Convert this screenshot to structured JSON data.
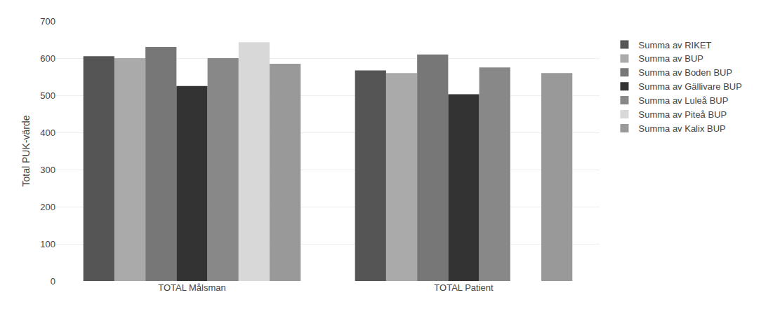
{
  "chart_data": {
    "type": "bar",
    "categories": [
      "TOTAL Målsman",
      "TOTAL Patient"
    ],
    "series": [
      {
        "name": "Summa av RIKET",
        "color": "#555555",
        "values": [
          605,
          567
        ]
      },
      {
        "name": "Summa av BUP",
        "color": "#aaaaaa",
        "values": [
          600,
          560
        ]
      },
      {
        "name": "Summa av Boden BUP",
        "color": "#777777",
        "values": [
          630,
          610
        ]
      },
      {
        "name": "Summa av Gällivare BUP",
        "color": "#333333",
        "values": [
          525,
          503
        ]
      },
      {
        "name": "Summa av Luleå BUP",
        "color": "#888888",
        "values": [
          600,
          575
        ]
      },
      {
        "name": "Summa av Piteå BUP",
        "color": "#d8d8d8",
        "values": [
          643,
          0
        ]
      },
      {
        "name": "Summa av Kalix BUP",
        "color": "#999999",
        "values": [
          585,
          560
        ]
      }
    ],
    "ylabel": "Total PUK-värde",
    "ylim": [
      0,
      700
    ],
    "yticks": [
      0,
      100,
      200,
      300,
      400,
      500,
      600,
      700
    ],
    "grid": true,
    "legend": "right"
  }
}
